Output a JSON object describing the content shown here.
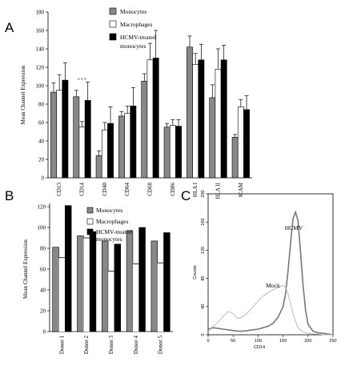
{
  "colors": {
    "monocytes": "#888888",
    "macrophages": "#ffffff",
    "hcmv": "#000000",
    "flow_hcmv": "#777777",
    "flow_mock": "#b5b5b5"
  },
  "chart_data": [
    {
      "panel": "A",
      "type": "bar",
      "ylabel": "Mean Channel Expression",
      "ylim": [
        0,
        180
      ],
      "yticks": [
        0,
        20,
        40,
        60,
        80,
        100,
        120,
        140,
        160,
        180
      ],
      "categories": [
        "CD13",
        "CD14",
        "CD40",
        "CD64",
        "CD68",
        "CD86",
        "HLA I",
        "HLA II",
        "ICAM"
      ],
      "legend": [
        "Monocytes",
        "Macrophages",
        "HCMV-treated",
        "monocytes"
      ],
      "annotation": "***",
      "series": [
        {
          "name": "Monocytes",
          "values": [
            93,
            88,
            24,
            67,
            105,
            55,
            142,
            87,
            44
          ],
          "errors": [
            10,
            7,
            5,
            5,
            8,
            4,
            12,
            14,
            3
          ]
        },
        {
          "name": "Macrophages",
          "values": [
            95,
            55,
            52,
            70,
            128,
            57,
            123,
            118,
            77
          ],
          "errors": [
            17,
            6,
            8,
            8,
            18,
            6,
            12,
            22,
            8
          ]
        },
        {
          "name": "HCMV-treated monocytes",
          "values": [
            106,
            84,
            59,
            78,
            130,
            56,
            128,
            128,
            74
          ],
          "errors": [
            19,
            20,
            18,
            20,
            30,
            7,
            17,
            16,
            15
          ]
        }
      ]
    },
    {
      "panel": "B",
      "type": "bar",
      "ylabel": "Mean Channel Expression",
      "ylim": [
        0,
        120
      ],
      "yticks": [
        0,
        20,
        40,
        60,
        80,
        100,
        120
      ],
      "categories": [
        "Donor 1",
        "Donor 2",
        "Donor 3",
        "Donor 4",
        "Donor 5"
      ],
      "legend": [
        "Monocytes",
        "Macrophages",
        "HCMV-treated",
        "monocytes"
      ],
      "series": [
        {
          "name": "Monocytes",
          "values": [
            81,
            92,
            87,
            97,
            87
          ]
        },
        {
          "name": "Macrophages",
          "values": [
            71,
            90,
            58,
            65,
            66
          ]
        },
        {
          "name": "HCMV-treated monocytes",
          "values": [
            121,
            96,
            84,
            100,
            95
          ]
        }
      ]
    },
    {
      "panel": "C",
      "type": "line",
      "xlabel": "CD14",
      "ylabel": "Counts",
      "xlim": [
        0,
        250
      ],
      "ylim": [
        0,
        200
      ],
      "xticks": [
        0,
        50,
        100,
        150,
        200,
        250
      ],
      "yticks": [
        0,
        40,
        80,
        120,
        160,
        200
      ],
      "series": [
        {
          "name": "HCMV",
          "x": [
            0,
            10,
            20,
            30,
            40,
            50,
            60,
            70,
            80,
            90,
            100,
            110,
            120,
            130,
            140,
            150,
            155,
            160,
            165,
            170,
            175,
            180,
            185,
            190,
            195,
            200,
            210,
            220,
            230,
            240,
            250
          ],
          "y": [
            8,
            10,
            9,
            8,
            7,
            6,
            5,
            5,
            6,
            7,
            8,
            10,
            12,
            16,
            25,
            40,
            58,
            90,
            130,
            165,
            174,
            162,
            118,
            70,
            35,
            15,
            5,
            3,
            2,
            1,
            0
          ]
        },
        {
          "name": "Mock",
          "x": [
            0,
            10,
            20,
            30,
            40,
            50,
            60,
            70,
            80,
            90,
            100,
            110,
            120,
            130,
            140,
            150,
            155,
            160,
            165,
            170,
            175,
            180,
            190,
            200,
            210,
            220,
            230,
            240,
            250
          ],
          "y": [
            5,
            12,
            18,
            26,
            33,
            30,
            23,
            26,
            32,
            40,
            48,
            55,
            60,
            64,
            67,
            70,
            68,
            58,
            44,
            30,
            19,
            10,
            4,
            2,
            1,
            1,
            0,
            0,
            0
          ]
        }
      ]
    }
  ]
}
